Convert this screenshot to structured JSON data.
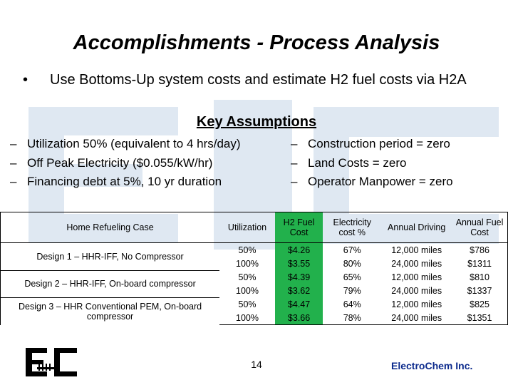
{
  "slide": {
    "title": "Accomplishments  - Process Analysis",
    "bullet": "Use Bottoms-Up system costs and estimate H2 fuel costs via H2A",
    "key_heading": "Key Assumptions",
    "assumptions_left": [
      "Utilization 50% (equivalent to 4 hrs/day)",
      "Off Peak Electricity ($0.055/kW/hr)",
      "Financing debt at 5%, 10 yr duration"
    ],
    "assumptions_right": [
      "Construction period = zero",
      "Land Costs = zero",
      "Operator Manpower = zero"
    ],
    "page_number": "14",
    "company": "ElectroChem Inc."
  },
  "table": {
    "headers": {
      "case": "Home Refueling Case",
      "utilization": "Utilization",
      "fuel_cost": "H2 Fuel Cost",
      "electricity": "Electricity cost %",
      "driving": "Annual Driving",
      "annual_fuel": "Annual Fuel Cost"
    },
    "cases": [
      {
        "name": "Design 1 – HHR-IFF, No Compressor",
        "rows": [
          {
            "utilization": "50%",
            "fuel_cost": "$4.26",
            "electricity": "67%",
            "driving": "12,000 miles",
            "annual_fuel": "$786"
          },
          {
            "utilization": "100%",
            "fuel_cost": "$3.55",
            "electricity": "80%",
            "driving": "24,000 miles",
            "annual_fuel": "$1311"
          }
        ]
      },
      {
        "name": "Design 2 – HHR-IFF, On-board compressor",
        "rows": [
          {
            "utilization": "50%",
            "fuel_cost": "$4.39",
            "electricity": "65%",
            "driving": "12,000 miles",
            "annual_fuel": "$810"
          },
          {
            "utilization": "100%",
            "fuel_cost": "$3.62",
            "electricity": "79%",
            "driving": "24,000 miles",
            "annual_fuel": "$1337"
          }
        ]
      },
      {
        "name": "Design 3 – HHR Conventional PEM, On-board compressor",
        "rows": [
          {
            "utilization": "50%",
            "fuel_cost": "$4.47",
            "electricity": "64%",
            "driving": "12,000 miles",
            "annual_fuel": "$825"
          },
          {
            "utilization": "100%",
            "fuel_cost": "$3.66",
            "electricity": "78%",
            "driving": "24,000 miles",
            "annual_fuel": "$1351"
          }
        ]
      }
    ]
  },
  "colors": {
    "fuel_column": "#22b14c",
    "company_text": "#0b2a8c",
    "watermark": "#dfe8f2"
  },
  "icons": {
    "logo": "electrochem-logo-icon",
    "watermark": "electrochem-watermark-icon"
  }
}
